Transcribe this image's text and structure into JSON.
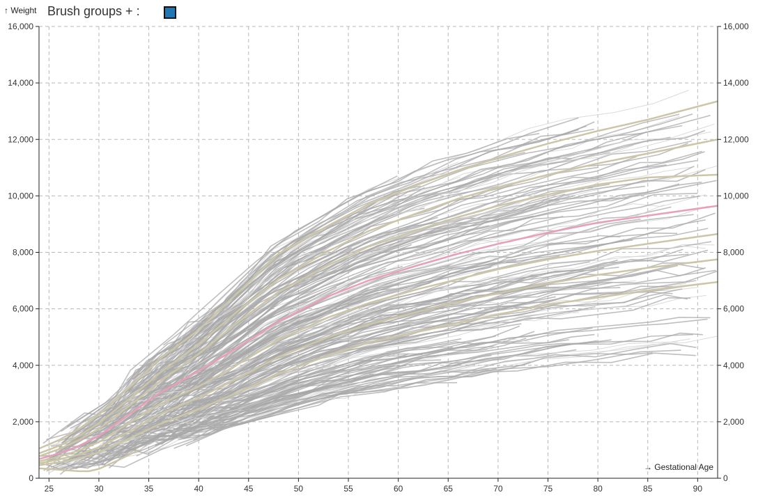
{
  "header": {
    "y_axis_title": "↑ Weight",
    "brush_label": "Brush groups + :",
    "brush_color": "#1f77b4"
  },
  "chart_data": {
    "type": "line",
    "xlabel": "→ Gestational Age",
    "ylabel": "↑ Weight",
    "xlim": [
      24,
      92
    ],
    "ylim": [
      0,
      16000
    ],
    "x_ticks": [
      25,
      30,
      35,
      40,
      45,
      50,
      55,
      60,
      65,
      70,
      75,
      80,
      85,
      90
    ],
    "y_ticks": [
      0,
      2000,
      4000,
      6000,
      8000,
      10000,
      12000,
      14000,
      16000
    ],
    "y_tick_labels": [
      "0",
      "2,000",
      "4,000",
      "6,000",
      "8,000",
      "10,000",
      "12,000",
      "14,000",
      "16,000"
    ],
    "grid": true,
    "colors": {
      "individual_lines": "#a8a8a8",
      "percentile_lines": "#ccc6a8",
      "median_line": "#e8a0b8"
    },
    "series": [
      {
        "role": "percentile",
        "x": [
          24,
          26,
          28,
          30,
          33,
          36,
          40,
          44,
          48,
          53,
          57,
          62,
          66,
          70,
          75,
          80,
          85,
          92
        ],
        "values": [
          1050,
          1350,
          1750,
          2250,
          3200,
          4200,
          5250,
          6600,
          7950,
          8950,
          9700,
          10400,
          10900,
          11350,
          11850,
          12300,
          12700,
          13350
        ]
      },
      {
        "role": "percentile",
        "x": [
          24,
          26,
          28,
          30,
          33,
          36,
          40,
          44,
          48,
          53,
          57,
          62,
          66,
          70,
          75,
          80,
          85,
          92
        ],
        "values": [
          880,
          1150,
          1500,
          1950,
          2800,
          3700,
          4750,
          5950,
          7050,
          8050,
          8750,
          9400,
          9900,
          10300,
          10750,
          11150,
          11500,
          12000
        ]
      },
      {
        "role": "percentile",
        "x": [
          24,
          26,
          28,
          30,
          33,
          36,
          40,
          44,
          48,
          53,
          57,
          62,
          66,
          70,
          75,
          80,
          85,
          92
        ],
        "values": [
          780,
          1030,
          1350,
          1750,
          2550,
          3400,
          4400,
          5550,
          6600,
          7550,
          8200,
          8800,
          9250,
          9650,
          10050,
          10400,
          10650,
          10750
        ]
      },
      {
        "role": "median",
        "x": [
          24,
          26,
          28,
          30,
          33,
          36,
          40,
          44,
          48,
          53,
          57,
          62,
          66,
          70,
          75,
          80,
          85,
          92
        ],
        "values": [
          680,
          880,
          1150,
          1500,
          2250,
          3000,
          3800,
          4650,
          5550,
          6450,
          7000,
          7550,
          7950,
          8300,
          8700,
          9050,
          9300,
          9650
        ]
      },
      {
        "role": "percentile",
        "x": [
          24,
          26,
          28,
          30,
          33,
          36,
          40,
          44,
          48,
          53,
          57,
          62,
          66,
          70,
          75,
          80,
          85,
          92
        ],
        "values": [
          600,
          760,
          980,
          1280,
          1950,
          2600,
          3250,
          4050,
          4900,
          5700,
          6200,
          6700,
          7050,
          7400,
          7750,
          8050,
          8300,
          8650
        ]
      },
      {
        "role": "percentile",
        "x": [
          24,
          26,
          28,
          30,
          33,
          36,
          40,
          44,
          48,
          53,
          57,
          62,
          66,
          70,
          75,
          80,
          85,
          92
        ],
        "values": [
          530,
          660,
          840,
          1100,
          1650,
          2250,
          2850,
          3550,
          4300,
          5000,
          5450,
          5900,
          6250,
          6550,
          6900,
          7200,
          7450,
          7750
        ]
      },
      {
        "role": "percentile",
        "x": [
          24,
          26,
          28,
          30,
          33,
          36,
          40,
          44,
          48,
          53,
          57,
          62,
          66,
          70,
          75,
          80,
          85,
          92
        ],
        "values": [
          460,
          560,
          700,
          920,
          1400,
          1900,
          2450,
          3050,
          3700,
          4350,
          4800,
          5200,
          5500,
          5800,
          6150,
          6400,
          6650,
          6950
        ]
      },
      {
        "role": "percentile",
        "x": [
          24,
          26,
          28,
          29,
          30,
          32,
          34
        ],
        "values": [
          350,
          300,
          250,
          250,
          330,
          650,
          1000
        ]
      }
    ]
  }
}
